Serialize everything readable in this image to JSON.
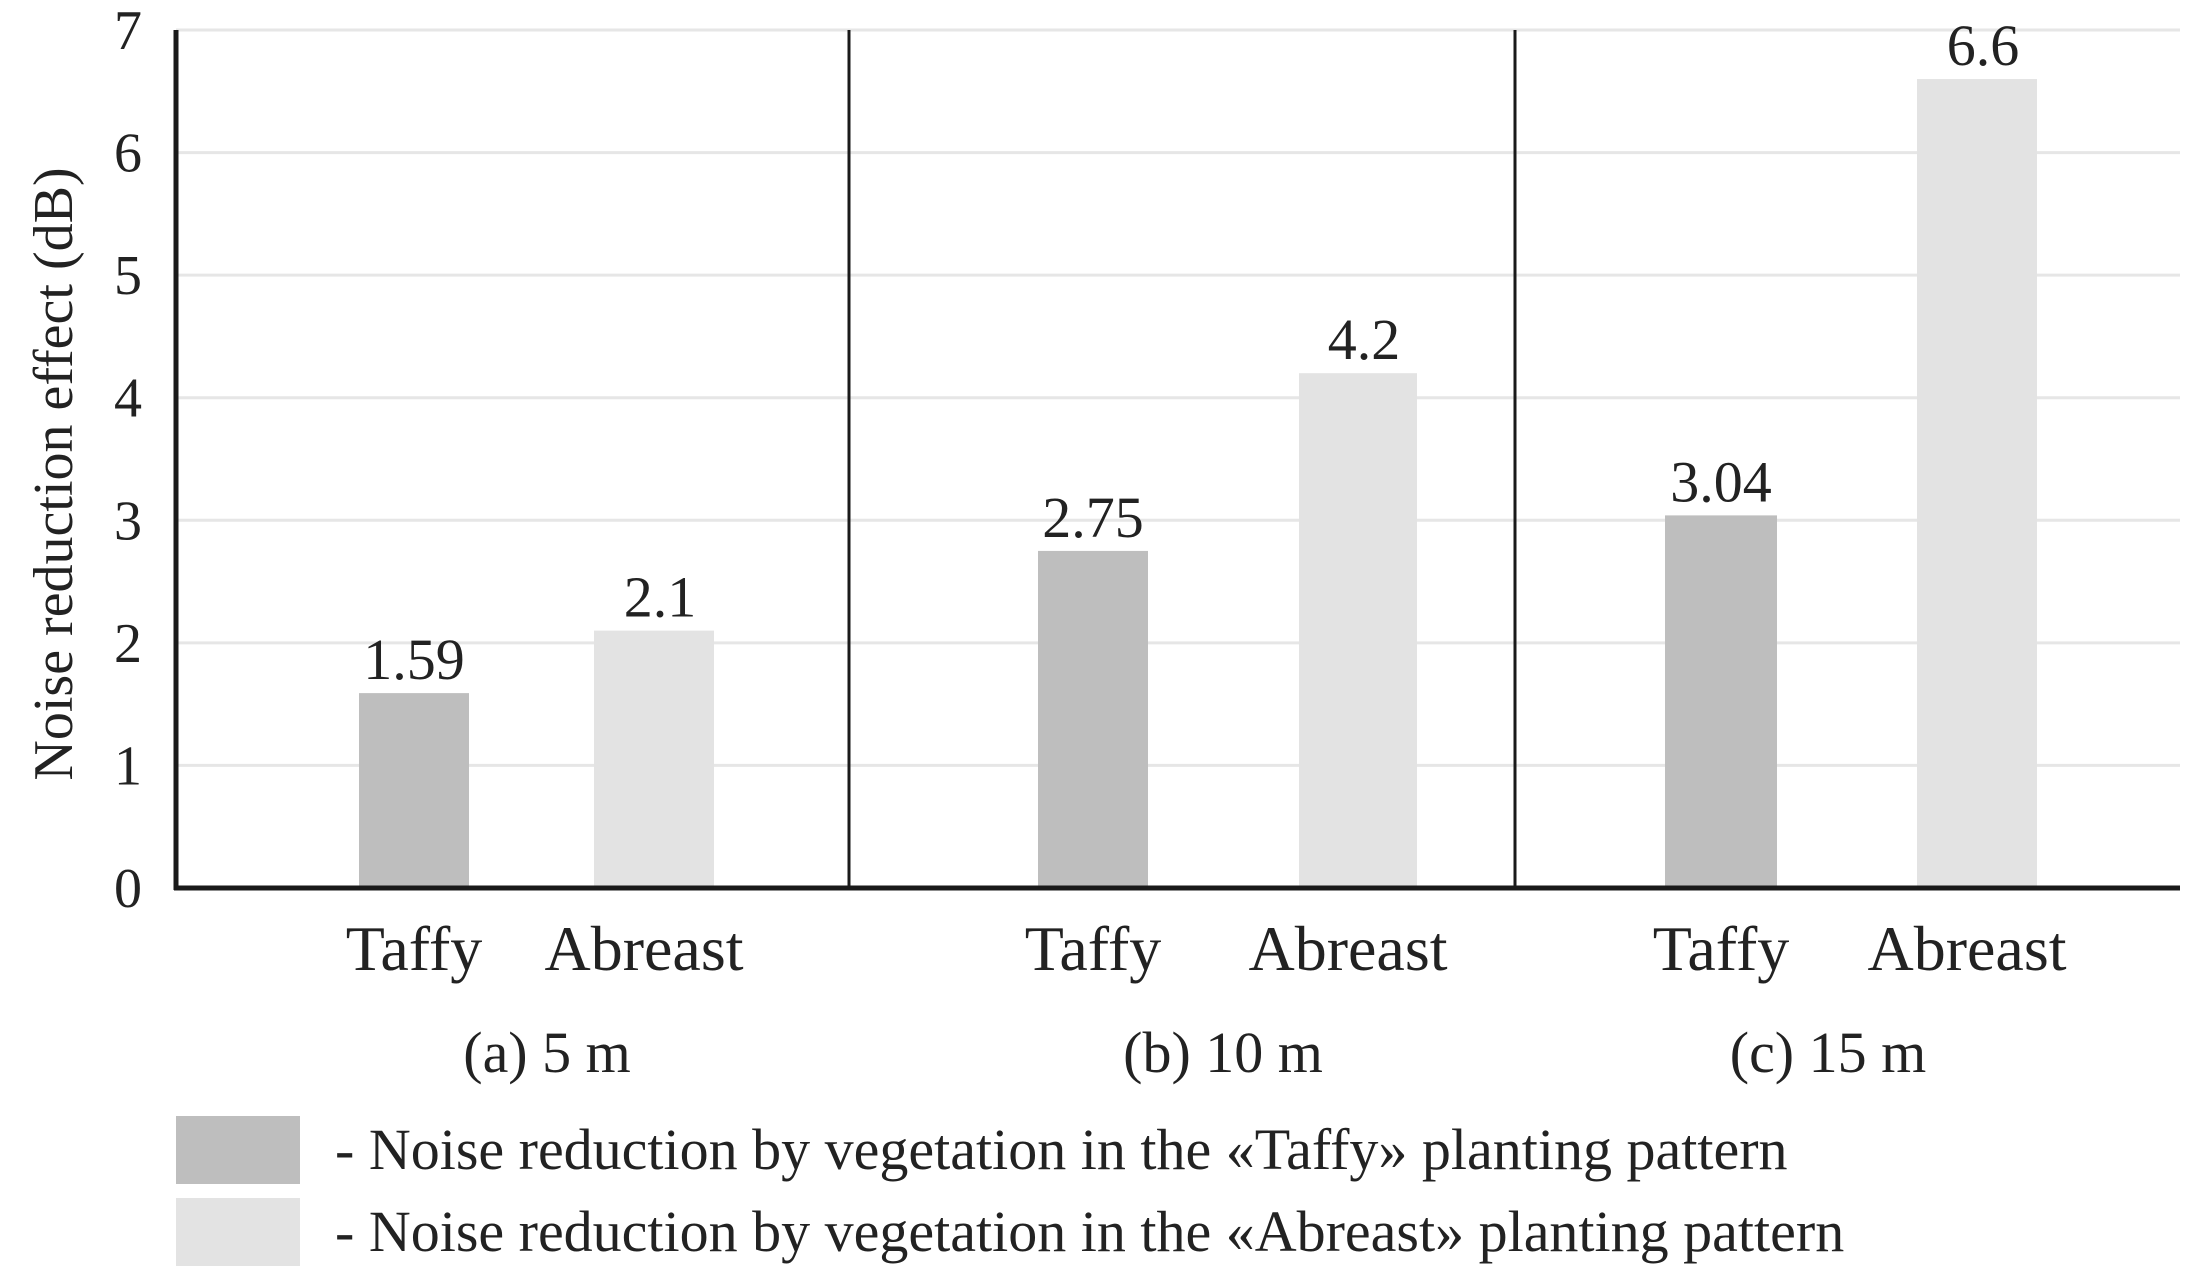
{
  "chart_data": {
    "type": "bar",
    "title": "",
    "ylabel": "Noise reduction effect (dB)",
    "xlabel": "",
    "ylim": [
      0,
      7
    ],
    "yticks": [
      0,
      1,
      2,
      3,
      4,
      5,
      6,
      7
    ],
    "grid": true,
    "colors": {
      "taffy": "#bebebe",
      "abreast": "#e3e3e3",
      "grid": "#e6e6e6",
      "axis": "#1a1a1a"
    },
    "groups": [
      {
        "label": "(a) 5 m",
        "bars": [
          {
            "category": "Taffy",
            "series": "taffy",
            "value": 1.59,
            "value_label": "1.59"
          },
          {
            "category": "Abreast",
            "series": "abreast",
            "value": 2.1,
            "value_label": "2.1"
          }
        ]
      },
      {
        "label": "(b) 10 m",
        "bars": [
          {
            "category": "Taffy",
            "series": "taffy",
            "value": 2.75,
            "value_label": "2.75"
          },
          {
            "category": "Abreast",
            "series": "abreast",
            "value": 4.2,
            "value_label": "4.2"
          }
        ]
      },
      {
        "label": "(c) 15 m",
        "bars": [
          {
            "category": "Taffy",
            "series": "taffy",
            "value": 3.04,
            "value_label": "3.04"
          },
          {
            "category": "Abreast",
            "series": "abreast",
            "value": 6.6,
            "value_label": "6.6"
          }
        ]
      }
    ],
    "legend": [
      {
        "series": "taffy",
        "text": "- Noise reduction by vegetation in the «Taffy» planting pattern"
      },
      {
        "series": "abreast",
        "text": "- Noise reduction by vegetation in the «Abreast» planting pattern"
      }
    ]
  }
}
